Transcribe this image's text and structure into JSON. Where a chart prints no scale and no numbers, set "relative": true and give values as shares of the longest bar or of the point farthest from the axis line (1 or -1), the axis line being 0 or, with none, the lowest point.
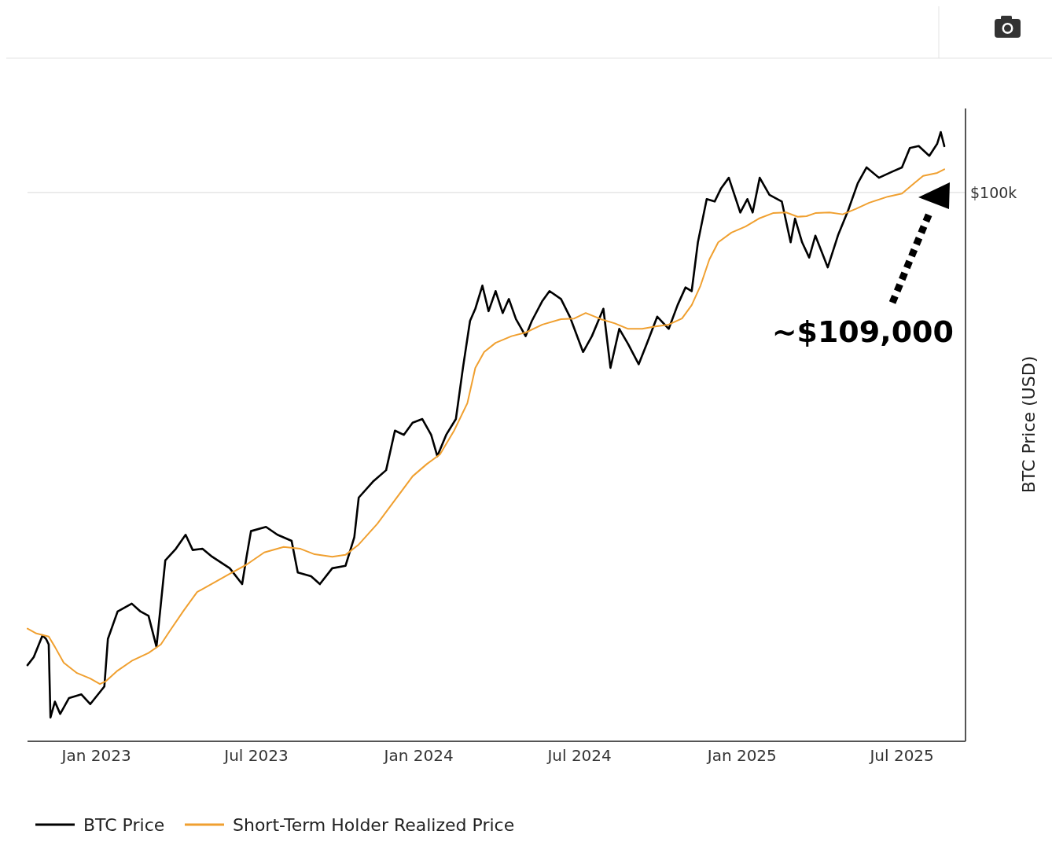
{
  "chart_data": {
    "type": "line",
    "relative": true,
    "ylabel": "BTC Price (USD)",
    "legend": "bottom",
    "line_style": "solid",
    "xlim": [
      "2022-10-15",
      "2025-09-11"
    ],
    "xticks": [
      {
        "value": "2023-01-01",
        "label": "Jan 2023"
      },
      {
        "value": "2023-07-01",
        "label": "Jul 2023"
      },
      {
        "value": "2024-01-01",
        "label": "Jan 2024"
      },
      {
        "value": "2024-07-01",
        "label": "Jul 2024"
      },
      {
        "value": "2025-01-01",
        "label": "Jan 2025"
      },
      {
        "value": "2025-07-01",
        "label": "Jul 2025"
      }
    ],
    "ref_lines": [
      {
        "axis": "y",
        "value": 0.901,
        "label": "$100k",
        "color": "#e6e6e6"
      }
    ],
    "annotations": [
      "~$109,000"
    ],
    "series": [
      {
        "name": "BTC Price",
        "color": "#000000",
        "x": [
          "2022-10-15",
          "2022-10-22",
          "2022-11-01",
          "2022-11-05",
          "2022-11-08",
          "2022-11-10",
          "2022-11-15",
          "2022-11-21",
          "2022-12-01",
          "2022-12-15",
          "2022-12-25",
          "2023-01-10",
          "2023-01-14",
          "2023-01-25",
          "2023-02-10",
          "2023-02-20",
          "2023-03-01",
          "2023-03-10",
          "2023-03-15",
          "2023-03-20",
          "2023-04-01",
          "2023-04-12",
          "2023-04-20",
          "2023-05-01",
          "2023-05-12",
          "2023-06-01",
          "2023-06-15",
          "2023-06-20",
          "2023-06-25",
          "2023-07-12",
          "2023-07-25",
          "2023-08-10",
          "2023-08-17",
          "2023-09-01",
          "2023-09-11",
          "2023-09-25",
          "2023-10-10",
          "2023-10-20",
          "2023-10-25",
          "2023-11-10",
          "2023-11-25",
          "2023-12-05",
          "2023-12-15",
          "2023-12-25",
          "2024-01-05",
          "2024-01-15",
          "2024-01-22",
          "2024-02-01",
          "2024-02-12",
          "2024-02-20",
          "2024-02-28",
          "2024-03-05",
          "2024-03-13",
          "2024-03-20",
          "2024-03-28",
          "2024-04-05",
          "2024-04-12",
          "2024-04-20",
          "2024-05-01",
          "2024-05-08",
          "2024-05-20",
          "2024-05-28",
          "2024-06-10",
          "2024-06-20",
          "2024-07-05",
          "2024-07-15",
          "2024-07-28",
          "2024-08-05",
          "2024-08-15",
          "2024-08-25",
          "2024-09-06",
          "2024-09-15",
          "2024-09-27",
          "2024-10-10",
          "2024-10-20",
          "2024-10-29",
          "2024-11-05",
          "2024-11-12",
          "2024-11-22",
          "2024-12-01",
          "2024-12-08",
          "2024-12-17",
          "2024-12-30",
          "2025-01-07",
          "2025-01-13",
          "2025-01-21",
          "2025-02-01",
          "2025-02-15",
          "2025-02-25",
          "2025-03-02",
          "2025-03-10",
          "2025-03-18",
          "2025-03-25",
          "2025-04-08",
          "2025-04-20",
          "2025-05-01",
          "2025-05-12",
          "2025-05-22",
          "2025-06-05",
          "2025-06-20",
          "2025-07-01",
          "2025-07-10",
          "2025-07-20",
          "2025-08-01",
          "2025-08-10",
          "2025-08-14",
          "2025-08-18"
        ],
        "values": [
          0.125,
          0.138,
          0.174,
          0.168,
          0.159,
          0.039,
          0.065,
          0.045,
          0.071,
          0.077,
          0.061,
          0.09,
          0.168,
          0.213,
          0.226,
          0.213,
          0.206,
          0.155,
          0.226,
          0.297,
          0.316,
          0.339,
          0.314,
          0.316,
          0.303,
          0.284,
          0.258,
          0.303,
          0.345,
          0.352,
          0.339,
          0.329,
          0.277,
          0.271,
          0.258,
          0.284,
          0.288,
          0.335,
          0.4,
          0.426,
          0.445,
          0.51,
          0.503,
          0.523,
          0.529,
          0.503,
          0.468,
          0.503,
          0.529,
          0.613,
          0.69,
          0.71,
          0.748,
          0.706,
          0.739,
          0.703,
          0.726,
          0.693,
          0.665,
          0.69,
          0.723,
          0.739,
          0.726,
          0.697,
          0.639,
          0.665,
          0.71,
          0.613,
          0.677,
          0.652,
          0.619,
          0.652,
          0.697,
          0.677,
          0.716,
          0.745,
          0.739,
          0.819,
          0.89,
          0.886,
          0.907,
          0.925,
          0.868,
          0.89,
          0.868,
          0.925,
          0.897,
          0.886,
          0.819,
          0.858,
          0.819,
          0.794,
          0.83,
          0.778,
          0.832,
          0.871,
          0.916,
          0.942,
          0.925,
          0.935,
          0.942,
          0.974,
          0.977,
          0.961,
          0.981,
          1.0,
          0.977
        ]
      },
      {
        "name": "Short-Term Holder Realized Price",
        "color": "#f0a030",
        "x": [
          "2022-10-15",
          "2022-10-25",
          "2022-11-08",
          "2022-11-15",
          "2022-11-25",
          "2022-12-10",
          "2022-12-25",
          "2023-01-05",
          "2023-01-12",
          "2023-01-25",
          "2023-02-10",
          "2023-03-01",
          "2023-03-15",
          "2023-03-25",
          "2023-04-10",
          "2023-04-25",
          "2023-05-15",
          "2023-06-01",
          "2023-06-20",
          "2023-07-10",
          "2023-08-01",
          "2023-08-20",
          "2023-09-05",
          "2023-09-25",
          "2023-10-10",
          "2023-10-25",
          "2023-11-15",
          "2023-12-05",
          "2023-12-25",
          "2024-01-10",
          "2024-01-25",
          "2024-02-10",
          "2024-02-25",
          "2024-03-05",
          "2024-03-15",
          "2024-03-28",
          "2024-04-15",
          "2024-05-01",
          "2024-05-20",
          "2024-06-10",
          "2024-06-25",
          "2024-07-08",
          "2024-07-25",
          "2024-08-10",
          "2024-08-25",
          "2024-09-10",
          "2024-09-25",
          "2024-10-10",
          "2024-10-25",
          "2024-11-05",
          "2024-11-15",
          "2024-11-25",
          "2024-12-05",
          "2024-12-20",
          "2025-01-05",
          "2025-01-20",
          "2025-02-05",
          "2025-02-20",
          "2025-03-05",
          "2025-03-15",
          "2025-03-25",
          "2025-04-10",
          "2025-04-25",
          "2025-05-10",
          "2025-05-25",
          "2025-06-15",
          "2025-07-01",
          "2025-07-15",
          "2025-07-25",
          "2025-08-10",
          "2025-08-18"
        ],
        "values": [
          0.185,
          0.177,
          0.172,
          0.155,
          0.129,
          0.112,
          0.103,
          0.094,
          0.099,
          0.116,
          0.132,
          0.145,
          0.159,
          0.181,
          0.215,
          0.245,
          0.261,
          0.275,
          0.29,
          0.31,
          0.319,
          0.316,
          0.307,
          0.303,
          0.306,
          0.323,
          0.357,
          0.396,
          0.435,
          0.455,
          0.471,
          0.51,
          0.555,
          0.613,
          0.639,
          0.654,
          0.665,
          0.671,
          0.684,
          0.693,
          0.694,
          0.703,
          0.693,
          0.686,
          0.677,
          0.677,
          0.681,
          0.684,
          0.694,
          0.716,
          0.748,
          0.791,
          0.819,
          0.835,
          0.845,
          0.858,
          0.867,
          0.868,
          0.861,
          0.862,
          0.867,
          0.868,
          0.865,
          0.874,
          0.884,
          0.894,
          0.899,
          0.916,
          0.928,
          0.933,
          0.939
        ]
      }
    ]
  }
}
